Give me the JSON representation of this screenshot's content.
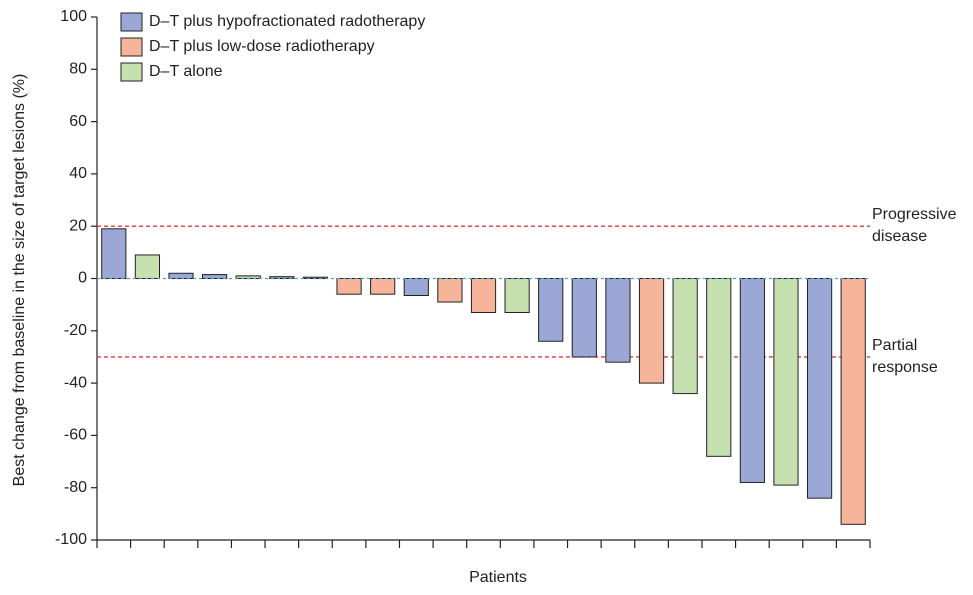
{
  "chart_data": {
    "type": "bar",
    "y_label": "Best change from baseline in the size of target lesions (%)",
    "x_label": "Patients",
    "categories": [
      null,
      null,
      null,
      null,
      null,
      null,
      null,
      null,
      null,
      null,
      null,
      null,
      null,
      null,
      null,
      null,
      null,
      null,
      null,
      null,
      null,
      null,
      null
    ],
    "series": [
      {
        "name": "D–T plus hypofractionated radotherapy",
        "color": "#9ba7d5",
        "values": [
          19,
          null,
          2,
          1.5,
          null,
          0.7,
          0.5,
          null,
          null,
          -6.5,
          null,
          null,
          null,
          -24,
          -30,
          -32,
          null,
          null,
          null,
          -78,
          null,
          -84,
          null
        ]
      },
      {
        "name": "D–T plus low-dose radiotherapy",
        "color": "#f6b59b",
        "values": [
          null,
          null,
          null,
          null,
          null,
          null,
          null,
          -6,
          -6,
          null,
          -9,
          -13,
          null,
          null,
          null,
          null,
          -40,
          null,
          null,
          null,
          null,
          null,
          -94
        ]
      },
      {
        "name": "D–T alone",
        "color": "#c7e0b0",
        "values": [
          null,
          9,
          null,
          null,
          1,
          null,
          null,
          null,
          null,
          null,
          null,
          null,
          -13,
          null,
          null,
          null,
          null,
          -44,
          -68,
          null,
          -79,
          null,
          null
        ]
      }
    ],
    "reference_lines": [
      {
        "value": 20,
        "label": "Progressive disease",
        "color": "#e23b3b"
      },
      {
        "value": -30,
        "label": "Partial response",
        "color": "#e23b3b"
      }
    ],
    "ylim": [
      -100,
      100
    ],
    "yticks": [
      -100,
      -80,
      -60,
      -40,
      -20,
      0,
      20,
      40,
      60,
      80,
      100
    ],
    "legend": "top-left"
  }
}
